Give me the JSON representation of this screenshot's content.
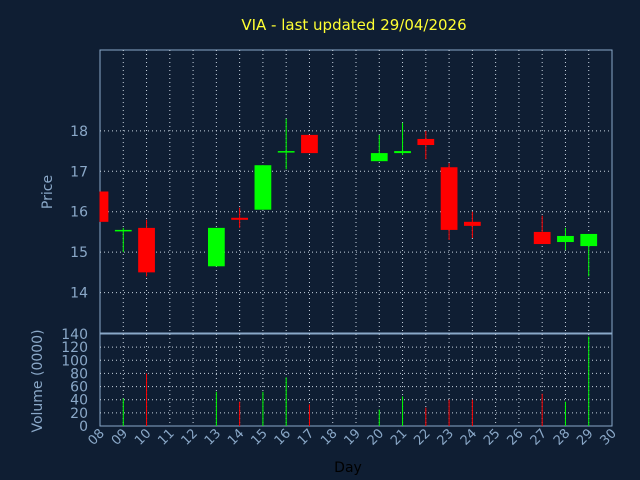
{
  "chart_data": [
    {
      "type": "candlestick",
      "title": "VIA - last updated 29/04/2026",
      "ylabel": "Price",
      "ylim": [
        13,
        20
      ],
      "yticks": [
        14,
        15,
        16,
        17,
        18
      ],
      "grid": true,
      "colors": {
        "up": "#00ff00",
        "down": "#ff0000",
        "background": "#0f1e33",
        "title": "#ffff33",
        "axis_text": "#8aa8c8"
      },
      "candles": [
        {
          "x": "08",
          "open": 16.5,
          "high": 16.5,
          "low": 15.75,
          "close": 15.75
        },
        {
          "x": "09",
          "open": 15.55,
          "high": 15.6,
          "low": 15.0,
          "close": 15.55
        },
        {
          "x": "10",
          "open": 15.6,
          "high": 15.8,
          "low": 14.4,
          "close": 14.5
        },
        {
          "x": "13",
          "open": 14.65,
          "high": 15.6,
          "low": 14.65,
          "close": 15.6
        },
        {
          "x": "14",
          "open": 15.85,
          "high": 16.1,
          "low": 15.6,
          "close": 15.8
        },
        {
          "x": "15",
          "open": 16.05,
          "high": 17.15,
          "low": 16.05,
          "close": 17.15
        },
        {
          "x": "16",
          "open": 17.5,
          "high": 18.3,
          "low": 17.05,
          "close": 17.5
        },
        {
          "x": "17",
          "open": 17.9,
          "high": 17.9,
          "low": 17.45,
          "close": 17.45
        },
        {
          "x": "20",
          "open": 17.25,
          "high": 17.9,
          "low": 17.25,
          "close": 17.45
        },
        {
          "x": "21",
          "open": 17.45,
          "high": 18.2,
          "low": 17.4,
          "close": 17.5
        },
        {
          "x": "22",
          "open": 17.8,
          "high": 18.0,
          "low": 17.3,
          "close": 17.65
        },
        {
          "x": "23",
          "open": 17.1,
          "high": 17.2,
          "low": 15.3,
          "close": 15.55
        },
        {
          "x": "24",
          "open": 15.75,
          "high": 16.0,
          "low": 15.35,
          "close": 15.65
        },
        {
          "x": "27",
          "open": 15.5,
          "high": 15.9,
          "low": 15.2,
          "close": 15.2
        },
        {
          "x": "28",
          "open": 15.25,
          "high": 15.6,
          "low": 15.05,
          "close": 15.4
        },
        {
          "x": "29",
          "open": 15.15,
          "high": 15.45,
          "low": 14.4,
          "close": 15.45
        }
      ]
    },
    {
      "type": "bar",
      "ylabel": "Volume (0000)",
      "xlabel": "Day",
      "ylim": [
        0,
        140
      ],
      "yticks": [
        0,
        20,
        40,
        60,
        80,
        100,
        120,
        140
      ],
      "categories": [
        "08",
        "09",
        "10",
        "11",
        "12",
        "13",
        "14",
        "15",
        "16",
        "17",
        "18",
        "19",
        "20",
        "21",
        "22",
        "23",
        "24",
        "25",
        "26",
        "27",
        "28",
        "29",
        "30"
      ],
      "bars": [
        {
          "x": "09",
          "value": 42,
          "direction": "up"
        },
        {
          "x": "10",
          "value": 80,
          "direction": "down"
        },
        {
          "x": "13",
          "value": 52,
          "direction": "up"
        },
        {
          "x": "14",
          "value": 37,
          "direction": "down"
        },
        {
          "x": "15",
          "value": 52,
          "direction": "up"
        },
        {
          "x": "16",
          "value": 74,
          "direction": "up"
        },
        {
          "x": "17",
          "value": 33,
          "direction": "down"
        },
        {
          "x": "20",
          "value": 25,
          "direction": "up"
        },
        {
          "x": "21",
          "value": 45,
          "direction": "up"
        },
        {
          "x": "22",
          "value": 28,
          "direction": "down"
        },
        {
          "x": "23",
          "value": 40,
          "direction": "down"
        },
        {
          "x": "24",
          "value": 40,
          "direction": "down"
        },
        {
          "x": "27",
          "value": 49,
          "direction": "down"
        },
        {
          "x": "28",
          "value": 37,
          "direction": "up"
        },
        {
          "x": "29",
          "value": 136,
          "direction": "up"
        }
      ]
    }
  ]
}
